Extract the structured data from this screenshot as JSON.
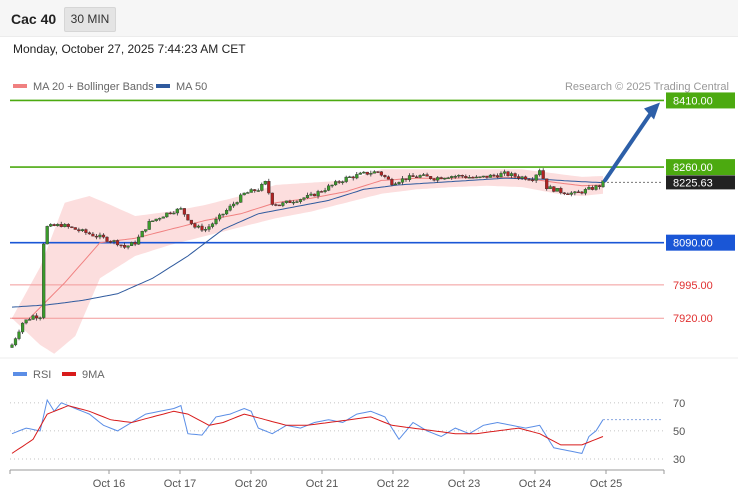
{
  "header": {
    "instrument": "Cac 40",
    "timeframe": "30 MIN",
    "datetime": "Monday, October 27, 2025 7:44:23 AM CET"
  },
  "legend": {
    "items": [
      {
        "label": "MA 20 + Bollinger Bands",
        "color": "#f08080"
      },
      {
        "label": "MA 50",
        "color": "#2f5a9e"
      }
    ],
    "copyright": "Research © 2025 Trading Central"
  },
  "chart_data": [
    {
      "type": "candlestick",
      "title": "Cac 40",
      "x_tick_labels": [
        "Oct 16",
        "Oct 17",
        "Oct 20",
        "Oct 21",
        "Oct 22",
        "Oct 23",
        "Oct 24",
        "Oct 25"
      ],
      "ylim": [
        7835,
        8420
      ],
      "grid": false,
      "series": [
        {
          "name": "MA 20 + Bollinger Bands",
          "color": "#f08080"
        },
        {
          "name": "MA 50",
          "color": "#2f5a9e"
        }
      ],
      "price_waypoints": [
        {
          "x": 0,
          "y": 7860
        },
        {
          "x": 3,
          "y": 7910
        },
        {
          "x": 6,
          "y": 7925
        },
        {
          "x": 8,
          "y": 7925
        },
        {
          "x": 9,
          "y": 8090
        },
        {
          "x": 10,
          "y": 8125
        },
        {
          "x": 14,
          "y": 8130
        },
        {
          "x": 18,
          "y": 8120
        },
        {
          "x": 22,
          "y": 8110
        },
        {
          "x": 26,
          "y": 8100
        },
        {
          "x": 30,
          "y": 8090
        },
        {
          "x": 32,
          "y": 8080
        },
        {
          "x": 35,
          "y": 8090
        },
        {
          "x": 39,
          "y": 8135
        },
        {
          "x": 45,
          "y": 8160
        },
        {
          "x": 48,
          "y": 8165
        },
        {
          "x": 52,
          "y": 8125
        },
        {
          "x": 55,
          "y": 8120
        },
        {
          "x": 58,
          "y": 8140
        },
        {
          "x": 62,
          "y": 8170
        },
        {
          "x": 66,
          "y": 8200
        },
        {
          "x": 70,
          "y": 8210
        },
        {
          "x": 72,
          "y": 8225
        },
        {
          "x": 74,
          "y": 8180
        },
        {
          "x": 76,
          "y": 8175
        },
        {
          "x": 80,
          "y": 8185
        },
        {
          "x": 85,
          "y": 8195
        },
        {
          "x": 90,
          "y": 8215
        },
        {
          "x": 95,
          "y": 8235
        },
        {
          "x": 100,
          "y": 8245
        },
        {
          "x": 104,
          "y": 8250
        },
        {
          "x": 108,
          "y": 8225
        },
        {
          "x": 112,
          "y": 8235
        },
        {
          "x": 116,
          "y": 8240
        },
        {
          "x": 120,
          "y": 8235
        },
        {
          "x": 124,
          "y": 8240
        },
        {
          "x": 128,
          "y": 8240
        },
        {
          "x": 132,
          "y": 8235
        },
        {
          "x": 136,
          "y": 8240
        },
        {
          "x": 140,
          "y": 8245
        },
        {
          "x": 144,
          "y": 8238
        },
        {
          "x": 148,
          "y": 8235
        },
        {
          "x": 150,
          "y": 8255
        },
        {
          "x": 152,
          "y": 8215
        },
        {
          "x": 156,
          "y": 8205
        },
        {
          "x": 160,
          "y": 8200
        },
        {
          "x": 164,
          "y": 8210
        },
        {
          "x": 167,
          "y": 8218
        },
        {
          "x": 168,
          "y": 8225
        }
      ],
      "ma50_waypoints": [
        {
          "x": 0,
          "y": 7945
        },
        {
          "x": 10,
          "y": 7950
        },
        {
          "x": 20,
          "y": 7960
        },
        {
          "x": 30,
          "y": 7975
        },
        {
          "x": 40,
          "y": 8010
        },
        {
          "x": 50,
          "y": 8060
        },
        {
          "x": 60,
          "y": 8120
        },
        {
          "x": 70,
          "y": 8155
        },
        {
          "x": 80,
          "y": 8170
        },
        {
          "x": 90,
          "y": 8185
        },
        {
          "x": 100,
          "y": 8210
        },
        {
          "x": 110,
          "y": 8220
        },
        {
          "x": 120,
          "y": 8225
        },
        {
          "x": 130,
          "y": 8230
        },
        {
          "x": 140,
          "y": 8235
        },
        {
          "x": 150,
          "y": 8233
        },
        {
          "x": 160,
          "y": 8228
        },
        {
          "x": 168,
          "y": 8225
        }
      ],
      "ma20_waypoints": [
        {
          "x": 0,
          "y": 7920
        },
        {
          "x": 5,
          "y": 7920
        },
        {
          "x": 15,
          "y": 8000
        },
        {
          "x": 25,
          "y": 8090
        },
        {
          "x": 35,
          "y": 8100
        },
        {
          "x": 45,
          "y": 8120
        },
        {
          "x": 55,
          "y": 8140
        },
        {
          "x": 65,
          "y": 8155
        },
        {
          "x": 75,
          "y": 8180
        },
        {
          "x": 85,
          "y": 8190
        },
        {
          "x": 95,
          "y": 8205
        },
        {
          "x": 105,
          "y": 8230
        },
        {
          "x": 115,
          "y": 8235
        },
        {
          "x": 125,
          "y": 8235
        },
        {
          "x": 135,
          "y": 8238
        },
        {
          "x": 145,
          "y": 8236
        },
        {
          "x": 155,
          "y": 8225
        },
        {
          "x": 162,
          "y": 8218
        },
        {
          "x": 168,
          "y": 8220
        }
      ],
      "bollinger_upper_waypoints": [
        {
          "x": 0,
          "y": 7920
        },
        {
          "x": 8,
          "y": 8035
        },
        {
          "x": 15,
          "y": 8180
        },
        {
          "x": 22,
          "y": 8195
        },
        {
          "x": 28,
          "y": 8175
        },
        {
          "x": 35,
          "y": 8150
        },
        {
          "x": 45,
          "y": 8160
        },
        {
          "x": 55,
          "y": 8175
        },
        {
          "x": 65,
          "y": 8195
        },
        {
          "x": 75,
          "y": 8220
        },
        {
          "x": 85,
          "y": 8225
        },
        {
          "x": 95,
          "y": 8230
        },
        {
          "x": 105,
          "y": 8255
        },
        {
          "x": 115,
          "y": 8255
        },
        {
          "x": 125,
          "y": 8255
        },
        {
          "x": 135,
          "y": 8255
        },
        {
          "x": 145,
          "y": 8255
        },
        {
          "x": 155,
          "y": 8245
        },
        {
          "x": 162,
          "y": 8238
        },
        {
          "x": 168,
          "y": 8240
        }
      ],
      "bollinger_lower_waypoints": [
        {
          "x": 0,
          "y": 7920
        },
        {
          "x": 8,
          "y": 7860
        },
        {
          "x": 12,
          "y": 7840
        },
        {
          "x": 18,
          "y": 7880
        },
        {
          "x": 25,
          "y": 8010
        },
        {
          "x": 35,
          "y": 8060
        },
        {
          "x": 45,
          "y": 8085
        },
        {
          "x": 55,
          "y": 8105
        },
        {
          "x": 65,
          "y": 8125
        },
        {
          "x": 75,
          "y": 8145
        },
        {
          "x": 85,
          "y": 8160
        },
        {
          "x": 95,
          "y": 8180
        },
        {
          "x": 105,
          "y": 8200
        },
        {
          "x": 115,
          "y": 8210
        },
        {
          "x": 125,
          "y": 8215
        },
        {
          "x": 135,
          "y": 8218
        },
        {
          "x": 145,
          "y": 8215
        },
        {
          "x": 155,
          "y": 8200
        },
        {
          "x": 162,
          "y": 8195
        },
        {
          "x": 168,
          "y": 8200
        }
      ],
      "levels": [
        {
          "label": "8410.00",
          "value": 8410,
          "color": "#4caa10",
          "kind": "resistance-target"
        },
        {
          "label": "8260.00",
          "value": 8260,
          "color": "#4caa10",
          "kind": "resistance"
        },
        {
          "label": "8225.63",
          "value": 8225.63,
          "color": "#222222",
          "kind": "last-price"
        },
        {
          "label": "8090.00",
          "value": 8090,
          "color": "#1a56d6",
          "kind": "pivot"
        },
        {
          "label": "7995.00",
          "value": 7995,
          "color": "#e03030",
          "kind": "support"
        },
        {
          "label": "7920.00",
          "value": 7920,
          "color": "#e03030",
          "kind": "support"
        }
      ],
      "projection": {
        "from": 8225.63,
        "to": 8410
      }
    },
    {
      "type": "line",
      "title": "",
      "ylim": [
        25,
        82
      ],
      "y_ticks": [
        30,
        50,
        70
      ],
      "series": [
        {
          "name": "RSI",
          "color": "#5b8ee6",
          "waypoints": [
            {
              "x": 0,
              "y": 48
            },
            {
              "x": 4,
              "y": 52
            },
            {
              "x": 8,
              "y": 50
            },
            {
              "x": 10,
              "y": 72
            },
            {
              "x": 12,
              "y": 64
            },
            {
              "x": 14,
              "y": 70
            },
            {
              "x": 18,
              "y": 66
            },
            {
              "x": 22,
              "y": 62
            },
            {
              "x": 26,
              "y": 54
            },
            {
              "x": 30,
              "y": 50
            },
            {
              "x": 34,
              "y": 56
            },
            {
              "x": 38,
              "y": 62
            },
            {
              "x": 42,
              "y": 64
            },
            {
              "x": 46,
              "y": 66
            },
            {
              "x": 48,
              "y": 68
            },
            {
              "x": 50,
              "y": 48
            },
            {
              "x": 54,
              "y": 47
            },
            {
              "x": 58,
              "y": 60
            },
            {
              "x": 62,
              "y": 62
            },
            {
              "x": 66,
              "y": 66
            },
            {
              "x": 68,
              "y": 64
            },
            {
              "x": 70,
              "y": 52
            },
            {
              "x": 74,
              "y": 48
            },
            {
              "x": 78,
              "y": 54
            },
            {
              "x": 82,
              "y": 52
            },
            {
              "x": 86,
              "y": 56
            },
            {
              "x": 90,
              "y": 58
            },
            {
              "x": 94,
              "y": 56
            },
            {
              "x": 98,
              "y": 62
            },
            {
              "x": 102,
              "y": 64
            },
            {
              "x": 106,
              "y": 60
            },
            {
              "x": 110,
              "y": 44
            },
            {
              "x": 114,
              "y": 56
            },
            {
              "x": 118,
              "y": 50
            },
            {
              "x": 122,
              "y": 46
            },
            {
              "x": 126,
              "y": 52
            },
            {
              "x": 130,
              "y": 48
            },
            {
              "x": 134,
              "y": 54
            },
            {
              "x": 138,
              "y": 56
            },
            {
              "x": 142,
              "y": 54
            },
            {
              "x": 146,
              "y": 52
            },
            {
              "x": 150,
              "y": 54
            },
            {
              "x": 154,
              "y": 38
            },
            {
              "x": 158,
              "y": 36
            },
            {
              "x": 162,
              "y": 34
            },
            {
              "x": 164,
              "y": 46
            },
            {
              "x": 166,
              "y": 50
            },
            {
              "x": 168,
              "y": 58
            }
          ]
        },
        {
          "name": "9MA",
          "color": "#d81b1b",
          "waypoints": [
            {
              "x": 0,
              "y": 34
            },
            {
              "x": 6,
              "y": 44
            },
            {
              "x": 10,
              "y": 62
            },
            {
              "x": 16,
              "y": 68
            },
            {
              "x": 22,
              "y": 64
            },
            {
              "x": 28,
              "y": 58
            },
            {
              "x": 34,
              "y": 56
            },
            {
              "x": 40,
              "y": 60
            },
            {
              "x": 46,
              "y": 64
            },
            {
              "x": 50,
              "y": 62
            },
            {
              "x": 56,
              "y": 54
            },
            {
              "x": 60,
              "y": 56
            },
            {
              "x": 66,
              "y": 62
            },
            {
              "x": 72,
              "y": 58
            },
            {
              "x": 78,
              "y": 54
            },
            {
              "x": 84,
              "y": 54
            },
            {
              "x": 90,
              "y": 56
            },
            {
              "x": 96,
              "y": 58
            },
            {
              "x": 102,
              "y": 60
            },
            {
              "x": 108,
              "y": 54
            },
            {
              "x": 114,
              "y": 52
            },
            {
              "x": 120,
              "y": 50
            },
            {
              "x": 126,
              "y": 48
            },
            {
              "x": 132,
              "y": 48
            },
            {
              "x": 138,
              "y": 50
            },
            {
              "x": 144,
              "y": 52
            },
            {
              "x": 150,
              "y": 48
            },
            {
              "x": 156,
              "y": 40
            },
            {
              "x": 162,
              "y": 40
            },
            {
              "x": 168,
              "y": 46
            }
          ]
        }
      ]
    }
  ]
}
